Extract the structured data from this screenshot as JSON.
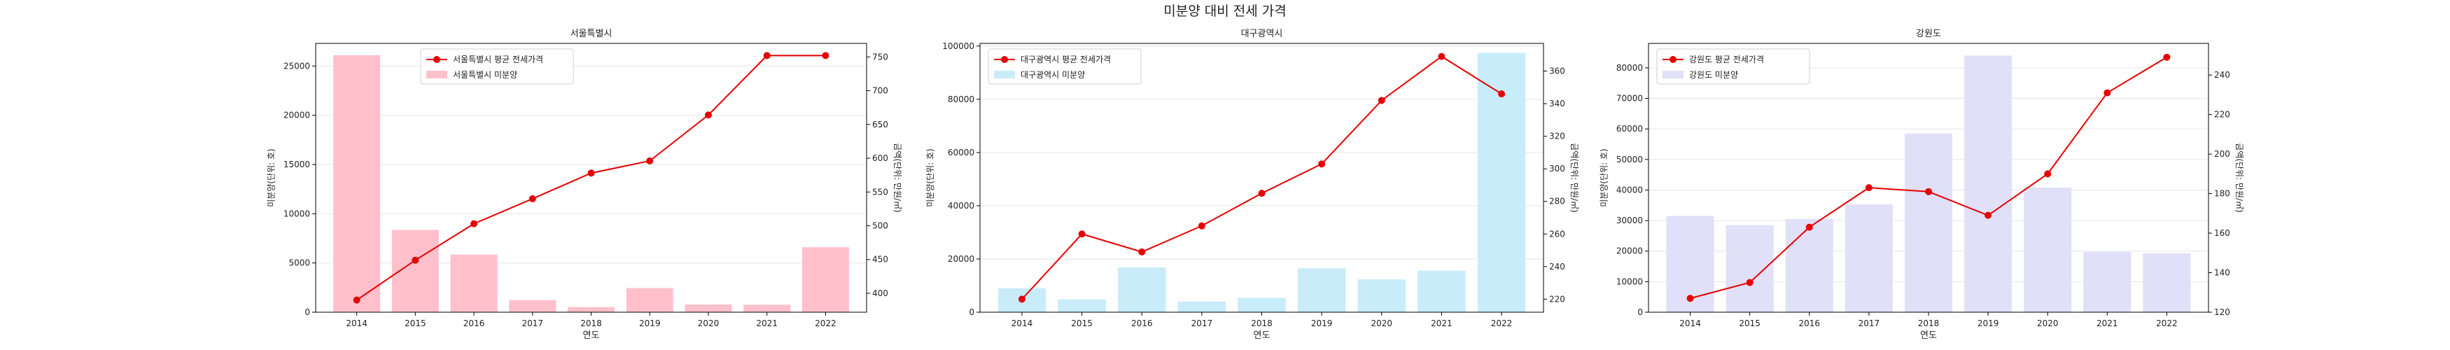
{
  "figure_title": "미분양 대비 전세 가격",
  "chart_data": [
    {
      "type": "bar+line",
      "title": "서울특별시",
      "xlabel": "연도",
      "ylabel_left": "미분양(단위: 호)",
      "ylabel_right": "금액(단위: 만원/㎡)",
      "categories": [
        "2014",
        "2015",
        "2016",
        "2017",
        "2018",
        "2019",
        "2020",
        "2021",
        "2022"
      ],
      "bar_series": {
        "name": "서울특별시 미분양",
        "values": [
          26100,
          8350,
          5850,
          1230,
          520,
          2450,
          780,
          760,
          6600
        ],
        "color": "#ffc0cb"
      },
      "line_series": {
        "name": "서울특별시 평균 전세가격",
        "values": [
          390,
          449,
          503,
          540,
          578,
          596,
          664,
          752,
          752
        ],
        "color": "#e60000"
      },
      "ylim_left": [
        0,
        27300
      ],
      "yticks_left": [
        0,
        5000,
        10000,
        15000,
        20000,
        25000
      ],
      "ylim_right": [
        372,
        770
      ],
      "yticks_right": [
        400,
        450,
        500,
        550,
        600,
        650,
        700,
        750
      ],
      "legend_placement": "top-center",
      "grid": "y"
    },
    {
      "type": "bar+line",
      "title": "대구광역시",
      "xlabel": "연도",
      "ylabel_left": "미분양(단위: 호)",
      "ylabel_right": "금액(단위: 만원/㎡)",
      "categories": [
        "2014",
        "2015",
        "2016",
        "2017",
        "2018",
        "2019",
        "2020",
        "2021",
        "2022"
      ],
      "bar_series": {
        "name": "대구광역시 미분양",
        "values": [
          9000,
          4800,
          16800,
          4000,
          5400,
          16500,
          12300,
          15600,
          97500
        ],
        "color": "#c8ecfa"
      },
      "line_series": {
        "name": "대구광역시 평균 전세가격",
        "values": [
          220,
          260,
          249,
          265,
          285,
          303,
          342,
          369,
          346
        ],
        "color": "#e60000"
      },
      "ylim_left": [
        0,
        101000
      ],
      "yticks_left": [
        0,
        20000,
        40000,
        60000,
        80000,
        100000
      ],
      "ylim_right": [
        212,
        377
      ],
      "yticks_right": [
        220,
        240,
        260,
        280,
        300,
        320,
        340,
        360
      ],
      "legend_placement": "top-left",
      "grid": "y"
    },
    {
      "type": "bar+line",
      "title": "강원도",
      "xlabel": "연도",
      "ylabel_left": "미분양(단위: 호)",
      "ylabel_right": "금액(단위: 만원/㎡)",
      "categories": [
        "2014",
        "2015",
        "2016",
        "2017",
        "2018",
        "2019",
        "2020",
        "2021",
        "2022"
      ],
      "bar_series": {
        "name": "강원도 미분양",
        "values": [
          31500,
          28500,
          30500,
          35300,
          58500,
          84000,
          40800,
          19800,
          19300
        ],
        "color": "#e0e0f8"
      },
      "line_series": {
        "name": "강원도 평균 전세가격",
        "values": [
          127,
          135,
          163,
          183,
          181,
          169,
          190,
          231,
          249
        ],
        "color": "#e60000"
      },
      "ylim_left": [
        0,
        88000
      ],
      "yticks_left": [
        0,
        10000,
        20000,
        30000,
        40000,
        50000,
        60000,
        70000,
        80000
      ],
      "ylim_right": [
        120,
        256
      ],
      "yticks_right": [
        120,
        140,
        160,
        180,
        200,
        220,
        240
      ],
      "legend_placement": "top-left",
      "grid": "y"
    }
  ]
}
